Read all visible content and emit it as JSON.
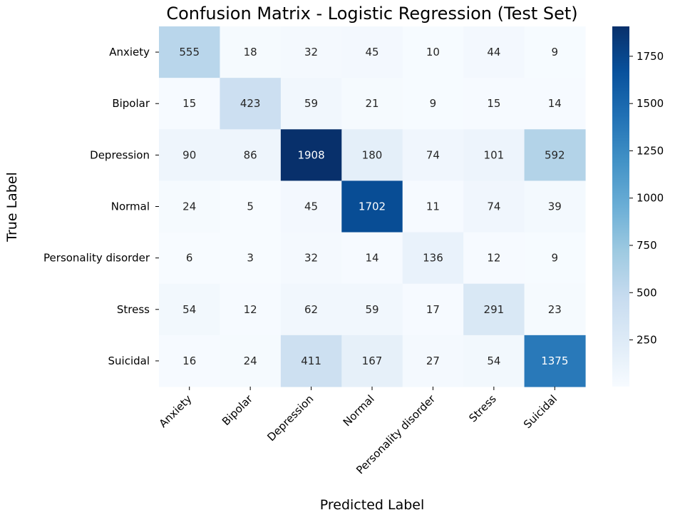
{
  "chart_data": {
    "type": "heatmap",
    "title": "Confusion Matrix - Logistic Regression (Test Set)",
    "xlabel": "Predicted Label",
    "ylabel": "True Label",
    "x_categories": [
      "Anxiety",
      "Bipolar",
      "Depression",
      "Normal",
      "Personality disorder",
      "Stress",
      "Suicidal"
    ],
    "y_categories": [
      "Anxiety",
      "Bipolar",
      "Depression",
      "Normal",
      "Personality disorder",
      "Stress",
      "Suicidal"
    ],
    "values": [
      [
        555,
        18,
        32,
        45,
        10,
        44,
        9
      ],
      [
        15,
        423,
        59,
        21,
        9,
        15,
        14
      ],
      [
        90,
        86,
        1908,
        180,
        74,
        101,
        592
      ],
      [
        24,
        5,
        45,
        1702,
        11,
        74,
        39
      ],
      [
        6,
        3,
        32,
        14,
        136,
        12,
        9
      ],
      [
        54,
        12,
        62,
        59,
        17,
        291,
        23
      ],
      [
        16,
        24,
        411,
        167,
        27,
        54,
        1375
      ]
    ],
    "colormap": "Blues",
    "color_range": [
      3,
      1908
    ],
    "colorbar_ticks": [
      250,
      500,
      750,
      1000,
      1250,
      1500,
      1750
    ],
    "colorbar_tick_labels": [
      "250",
      "500",
      "750",
      "1000",
      "1250",
      "1500",
      "1750"
    ],
    "colors": {
      "low": "#f7fbff",
      "high": "#08306b",
      "dark_text": "#262626",
      "light_text": "#ffffff"
    }
  }
}
